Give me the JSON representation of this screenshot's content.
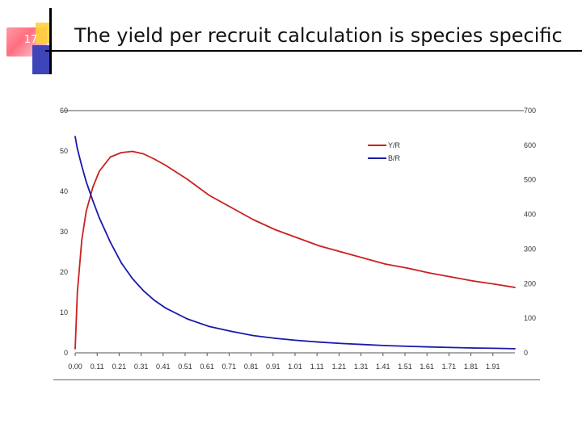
{
  "slide": {
    "number": "17",
    "title": "The yield per recruit calculation is species specific"
  },
  "chart_data": {
    "type": "line",
    "title": "",
    "xlabel": "",
    "ylabel": "",
    "x_ticks": [
      "0.00",
      "0.11",
      "0.21",
      "0.31",
      "0.41",
      "0.51",
      "0.61",
      "0.71",
      "0.81",
      "0.91",
      "1.01",
      "1.11",
      "1.21",
      "1.31",
      "1.41",
      "1.51",
      "1.61",
      "1.71",
      "1.81",
      "1.91"
    ],
    "ylim_left": [
      0,
      60
    ],
    "yticks_left": [
      "0",
      "10",
      "20",
      "30",
      "40",
      "50",
      "60"
    ],
    "ylim_right": [
      0,
      700
    ],
    "yticks_right": [
      "0",
      "100",
      "200",
      "300",
      "400",
      "500",
      "600",
      "700"
    ],
    "grid": false,
    "legend_position": "top-right",
    "colors": {
      "yr": "#cc2020",
      "br": "#1a1aaa"
    },
    "series": [
      {
        "name": "Y/R",
        "axis": "left",
        "x": [
          0.0,
          0.01,
          0.03,
          0.05,
          0.08,
          0.11,
          0.16,
          0.21,
          0.26,
          0.31,
          0.36,
          0.41,
          0.51,
          0.61,
          0.71,
          0.81,
          0.91,
          1.01,
          1.11,
          1.21,
          1.31,
          1.41,
          1.51,
          1.61,
          1.71,
          1.81,
          1.91,
          2.0
        ],
        "values": [
          1,
          15,
          28,
          35,
          41,
          45,
          48.5,
          49.6,
          49.9,
          49.3,
          48,
          46.5,
          43,
          39,
          36,
          33,
          30.5,
          28.5,
          26.5,
          25,
          23.5,
          22,
          21,
          19.8,
          18.8,
          17.8,
          17,
          16.2
        ]
      },
      {
        "name": "B/R",
        "axis": "right",
        "x": [
          0.0,
          0.01,
          0.03,
          0.05,
          0.08,
          0.11,
          0.16,
          0.21,
          0.26,
          0.31,
          0.36,
          0.41,
          0.51,
          0.61,
          0.71,
          0.81,
          0.91,
          1.01,
          1.11,
          1.21,
          1.31,
          1.41,
          1.51,
          1.61,
          1.71,
          1.81,
          1.91,
          2.0
        ],
        "values": [
          625,
          590,
          540,
          495,
          440,
          390,
          320,
          260,
          215,
          180,
          152,
          130,
          98,
          76,
          62,
          50,
          42,
          36,
          31,
          27,
          24,
          21,
          19,
          17,
          15.5,
          14,
          13,
          12
        ]
      }
    ]
  }
}
